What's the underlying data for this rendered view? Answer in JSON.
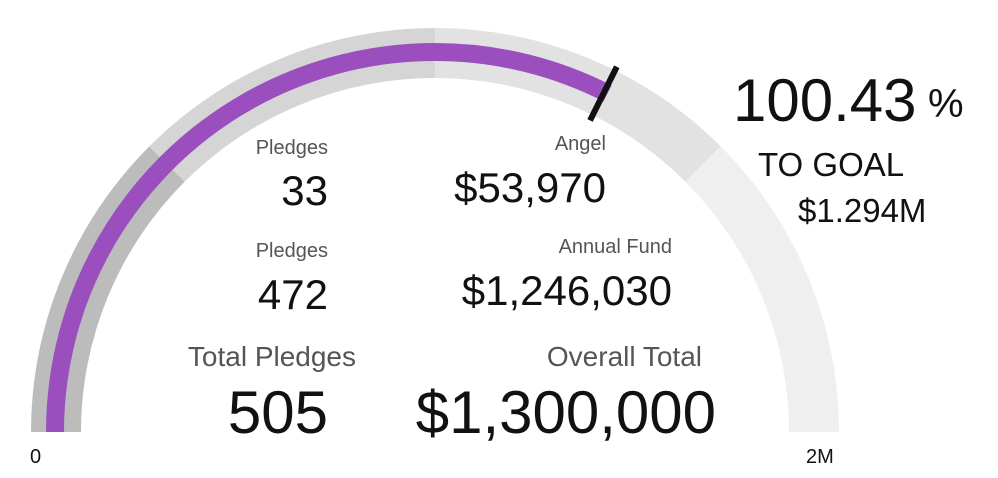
{
  "chart_data": {
    "type": "gauge",
    "min": 0,
    "max": 2000000,
    "min_label": "0",
    "max_label": "2M",
    "value": 1300000,
    "goal": 1294000,
    "bands": [
      {
        "from": 0,
        "to": 500000,
        "color": "#bcbcbc"
      },
      {
        "from": 500000,
        "to": 1000000,
        "color": "#d5d5d5"
      },
      {
        "from": 1000000,
        "to": 1500000,
        "color": "#e2e2e2"
      },
      {
        "from": 1500000,
        "to": 2000000,
        "color": "#efefef"
      }
    ],
    "value_color": "#9b4fbf",
    "goal_marker_color": "#111111"
  },
  "goal": {
    "percent": "100.43",
    "percent_sign": "%",
    "label": "TO GOAL",
    "amount": "$1.294M"
  },
  "metrics": {
    "angel": {
      "pledges_label": "Pledges",
      "pledges": "33",
      "amount_label": "Angel",
      "amount": "$53,970"
    },
    "annual_fund": {
      "pledges_label": "Pledges",
      "pledges": "472",
      "amount_label": "Annual Fund",
      "amount": "$1,246,030"
    },
    "total": {
      "pledges_label": "Total Pledges",
      "pledges": "505",
      "amount_label": "Overall Total",
      "amount": "$1,300,000"
    }
  }
}
